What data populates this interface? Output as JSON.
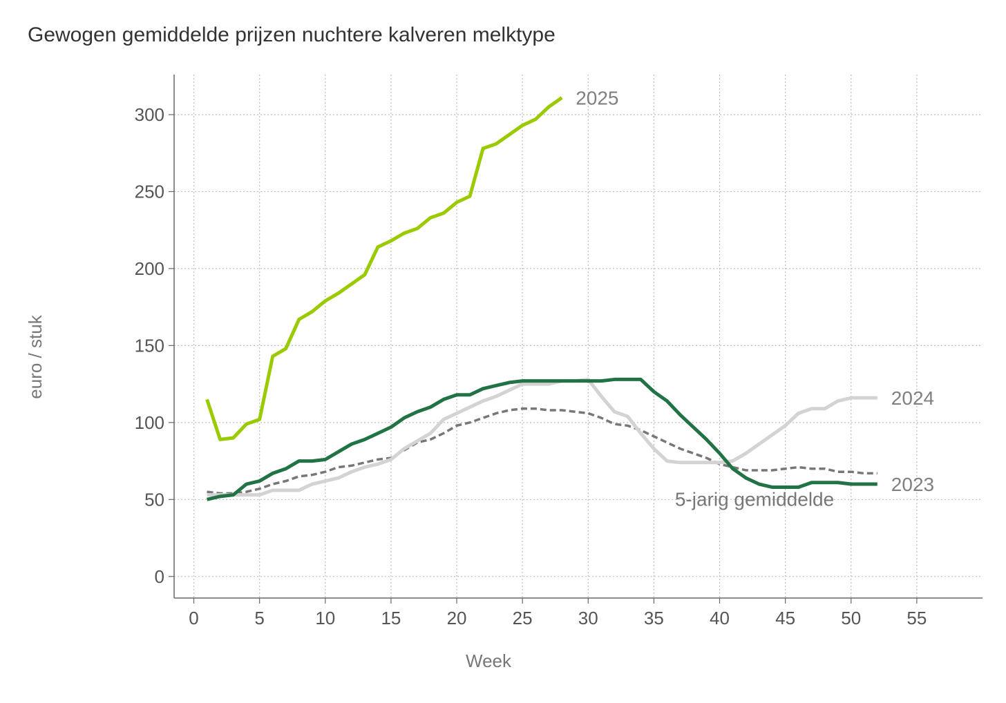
{
  "chart_data": {
    "type": "line",
    "title": "Gewogen gemiddelde prijzen nuchtere kalveren melktype",
    "xlabel": "Week",
    "ylabel": "euro / stuk",
    "xlim": [
      -1.5,
      60
    ],
    "ylim": [
      -14,
      326
    ],
    "xticks": [
      0,
      5,
      10,
      15,
      20,
      25,
      30,
      35,
      40,
      45,
      50,
      55
    ],
    "yticks": [
      0,
      50,
      100,
      150,
      200,
      250,
      300
    ],
    "grid": true,
    "legend": "inline labels at line ends",
    "series": [
      {
        "name": "2025",
        "color": "#9ACA00",
        "dash": false,
        "x": [
          1,
          2,
          3,
          4,
          5,
          6,
          7,
          8,
          9,
          10,
          11,
          12,
          13,
          14,
          15,
          16,
          17,
          18,
          19,
          20,
          21,
          22,
          23,
          24,
          25,
          26,
          27,
          28
        ],
        "values": [
          115,
          89,
          90,
          99,
          102,
          143,
          148,
          167,
          172,
          179,
          184,
          190,
          196,
          214,
          218,
          223,
          226,
          233,
          236,
          243,
          247,
          278,
          281,
          287,
          293,
          297,
          305,
          311
        ]
      },
      {
        "name": "2024",
        "color": "#D3D3D3",
        "dash": false,
        "x": [
          1,
          2,
          3,
          4,
          5,
          6,
          7,
          8,
          9,
          10,
          11,
          12,
          13,
          14,
          15,
          16,
          17,
          18,
          19,
          20,
          21,
          22,
          23,
          24,
          25,
          26,
          27,
          28,
          29,
          30,
          31,
          32,
          33,
          34,
          35,
          36,
          37,
          38,
          39,
          40,
          41,
          42,
          43,
          44,
          45,
          46,
          47,
          48,
          49,
          50,
          51,
          52
        ],
        "values": [
          53,
          53,
          53,
          53,
          53,
          56,
          56,
          56,
          60,
          62,
          64,
          68,
          71,
          73,
          76,
          83,
          88,
          93,
          102,
          106,
          110,
          114,
          117,
          121,
          125,
          125,
          125,
          127,
          127,
          128,
          117,
          107,
          104,
          93,
          83,
          75,
          74,
          74,
          74,
          74,
          75,
          80,
          86,
          92,
          98,
          106,
          109,
          109,
          114,
          116,
          116,
          116
        ]
      },
      {
        "name": "2023",
        "color": "#217346",
        "dash": false,
        "x": [
          1,
          2,
          3,
          4,
          5,
          6,
          7,
          8,
          9,
          10,
          11,
          12,
          13,
          14,
          15,
          16,
          17,
          18,
          19,
          20,
          21,
          22,
          23,
          24,
          25,
          26,
          27,
          28,
          29,
          30,
          31,
          32,
          33,
          34,
          35,
          36,
          37,
          38,
          39,
          40,
          41,
          42,
          43,
          44,
          45,
          46,
          47,
          48,
          49,
          50,
          51,
          52
        ],
        "values": [
          50,
          52,
          53,
          60,
          62,
          67,
          70,
          75,
          75,
          76,
          81,
          86,
          89,
          93,
          97,
          103,
          107,
          110,
          115,
          118,
          118,
          122,
          124,
          126,
          127,
          127,
          127,
          127,
          127,
          127,
          127,
          128,
          128,
          128,
          120,
          114,
          105,
          97,
          89,
          80,
          70,
          64,
          60,
          58,
          58,
          58,
          61,
          61,
          61,
          60,
          60,
          60
        ]
      },
      {
        "name": "5-jarig gemiddelde",
        "color": "#777777",
        "dash": true,
        "x": [
          1,
          2,
          3,
          4,
          5,
          6,
          7,
          8,
          9,
          10,
          11,
          12,
          13,
          14,
          15,
          16,
          17,
          18,
          19,
          20,
          21,
          22,
          23,
          24,
          25,
          26,
          27,
          28,
          29,
          30,
          31,
          32,
          33,
          34,
          35,
          36,
          37,
          38,
          39,
          40,
          41,
          42,
          43,
          44,
          45,
          46,
          47,
          48,
          49,
          50,
          51,
          52
        ],
        "values": [
          55,
          54,
          54,
          55,
          57,
          60,
          62,
          65,
          66,
          68,
          71,
          72,
          74,
          76,
          77,
          82,
          87,
          89,
          93,
          98,
          100,
          103,
          106,
          108,
          109,
          109,
          108,
          108,
          107,
          106,
          103,
          99,
          98,
          95,
          91,
          87,
          83,
          80,
          77,
          73,
          71,
          69,
          69,
          69,
          70,
          71,
          70,
          70,
          68,
          68,
          67,
          67
        ]
      }
    ]
  }
}
